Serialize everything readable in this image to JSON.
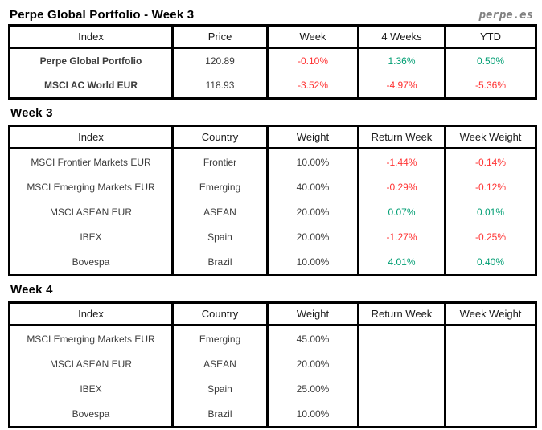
{
  "page": {
    "title": "Perpe Global Portfolio - Week 3",
    "brand": "perpe.es"
  },
  "colors": {
    "positive": "#009E73",
    "negative": "#FF3333",
    "border": "#000000",
    "brand_gray": "#808080"
  },
  "summary_table": {
    "columns": [
      "Index",
      "Price",
      "Week",
      "4 Weeks",
      "YTD"
    ],
    "rows": [
      {
        "index": "Perpe Global Portfolio",
        "price": "120.89",
        "week": "-0.10%",
        "four_weeks": "1.36%",
        "ytd": "0.50%"
      },
      {
        "index": "MSCI AC World EUR",
        "price": "118.93",
        "week": "-3.52%",
        "four_weeks": "-4.97%",
        "ytd": "-5.36%"
      }
    ]
  },
  "week3": {
    "label": "Week 3",
    "columns": [
      "Index",
      "Country",
      "Weight",
      "Return Week",
      "Week Weight"
    ],
    "rows": [
      {
        "index": "MSCI Frontier Markets EUR",
        "country": "Frontier",
        "weight": "10.00%",
        "return_week": "-1.44%",
        "week_weight": "-0.14%"
      },
      {
        "index": "MSCI Emerging Markets EUR",
        "country": "Emerging",
        "weight": "40.00%",
        "return_week": "-0.29%",
        "week_weight": "-0.12%"
      },
      {
        "index": "MSCI ASEAN EUR",
        "country": "ASEAN",
        "weight": "20.00%",
        "return_week": "0.07%",
        "week_weight": "0.01%"
      },
      {
        "index": "IBEX",
        "country": "Spain",
        "weight": "20.00%",
        "return_week": "-1.27%",
        "week_weight": "-0.25%"
      },
      {
        "index": "Bovespa",
        "country": "Brazil",
        "weight": "10.00%",
        "return_week": "4.01%",
        "week_weight": "0.40%"
      }
    ]
  },
  "week4": {
    "label": "Week 4",
    "columns": [
      "Index",
      "Country",
      "Weight",
      "Return Week",
      "Week Weight"
    ],
    "rows": [
      {
        "index": "MSCI Emerging Markets EUR",
        "country": "Emerging",
        "weight": "45.00%",
        "return_week": "",
        "week_weight": ""
      },
      {
        "index": "MSCI ASEAN EUR",
        "country": "ASEAN",
        "weight": "20.00%",
        "return_week": "",
        "week_weight": ""
      },
      {
        "index": "IBEX",
        "country": "Spain",
        "weight": "25.00%",
        "return_week": "",
        "week_weight": ""
      },
      {
        "index": "Bovespa",
        "country": "Brazil",
        "weight": "10.00%",
        "return_week": "",
        "week_weight": ""
      }
    ]
  }
}
